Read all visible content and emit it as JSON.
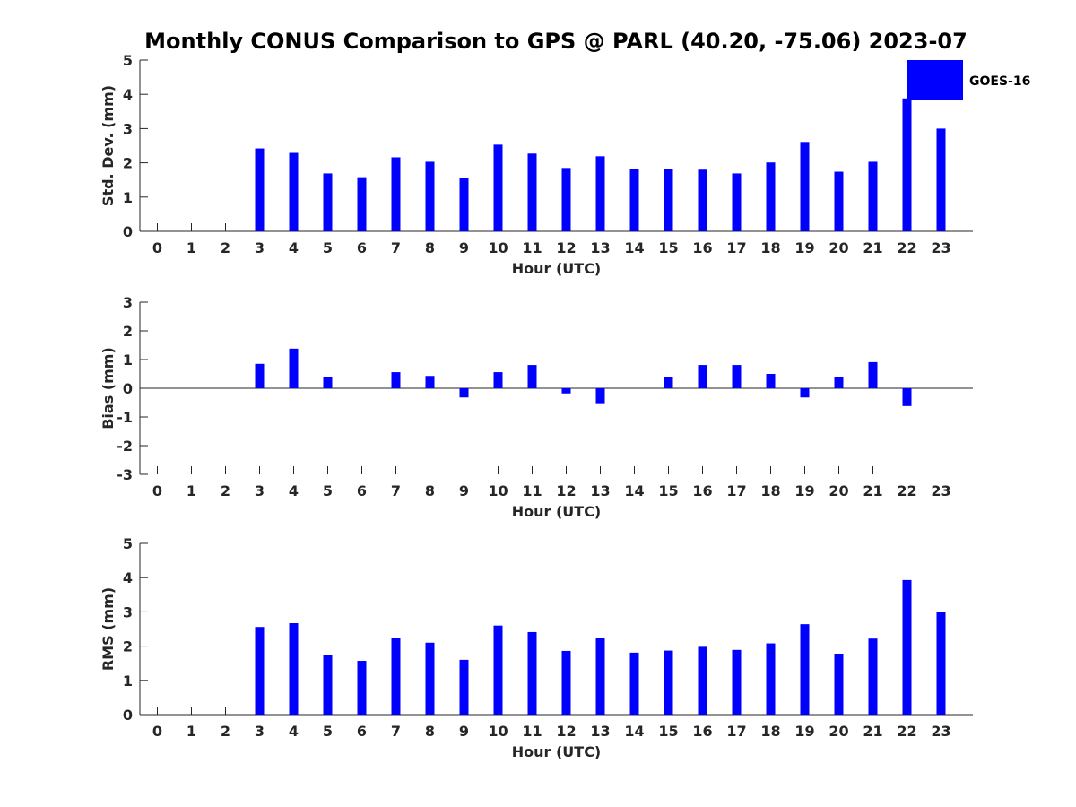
{
  "chart_data": {
    "title": "Monthly CONUS Comparison to GPS @ PARL (40.20, -75.06) 2023-07",
    "legend": {
      "label": "GOES-16",
      "placement": "top-right"
    },
    "colors": {
      "bar": "#0000ff",
      "axis": "#262626",
      "background": "#ffffff"
    },
    "panels": [
      {
        "type": "bar",
        "name": "std-dev",
        "xlabel": "Hour (UTC)",
        "ylabel": "Std. Dev. (mm)",
        "ylim": [
          0,
          5
        ],
        "yticks": [
          0,
          1,
          2,
          3,
          4,
          5
        ],
        "categories": [
          0,
          1,
          2,
          3,
          4,
          5,
          6,
          7,
          8,
          9,
          10,
          11,
          12,
          13,
          14,
          15,
          16,
          17,
          18,
          19,
          20,
          21,
          22,
          23
        ],
        "values": [
          null,
          null,
          null,
          2.42,
          2.29,
          1.69,
          1.58,
          2.16,
          2.03,
          1.55,
          2.53,
          2.27,
          1.85,
          2.19,
          1.82,
          1.82,
          1.8,
          1.69,
          2.01,
          2.61,
          1.74,
          2.03,
          3.88,
          3.0
        ]
      },
      {
        "type": "bar",
        "name": "bias",
        "xlabel": "Hour (UTC)",
        "ylabel": "Bias (mm)",
        "ylim": [
          -3,
          3
        ],
        "yticks": [
          -3,
          -2,
          -1,
          0,
          1,
          2,
          3
        ],
        "categories": [
          0,
          1,
          2,
          3,
          4,
          5,
          6,
          7,
          8,
          9,
          10,
          11,
          12,
          13,
          14,
          15,
          16,
          17,
          18,
          19,
          20,
          21,
          22,
          23
        ],
        "values": [
          null,
          null,
          null,
          0.85,
          1.38,
          0.4,
          null,
          0.56,
          0.43,
          -0.32,
          0.56,
          0.81,
          -0.18,
          -0.52,
          null,
          0.4,
          0.81,
          0.81,
          0.5,
          -0.32,
          0.4,
          0.91,
          -0.62,
          null
        ]
      },
      {
        "type": "bar",
        "name": "rms",
        "xlabel": "Hour (UTC)",
        "ylabel": "RMS (mm)",
        "ylim": [
          0,
          5
        ],
        "yticks": [
          0,
          1,
          2,
          3,
          4,
          5
        ],
        "categories": [
          0,
          1,
          2,
          3,
          4,
          5,
          6,
          7,
          8,
          9,
          10,
          11,
          12,
          13,
          14,
          15,
          16,
          17,
          18,
          19,
          20,
          21,
          22,
          23
        ],
        "values": [
          null,
          null,
          null,
          2.56,
          2.67,
          1.73,
          1.57,
          2.25,
          2.1,
          1.6,
          2.6,
          2.41,
          1.86,
          2.25,
          1.81,
          1.87,
          1.98,
          1.89,
          2.08,
          2.64,
          1.78,
          2.22,
          3.93,
          2.99
        ]
      }
    ]
  }
}
